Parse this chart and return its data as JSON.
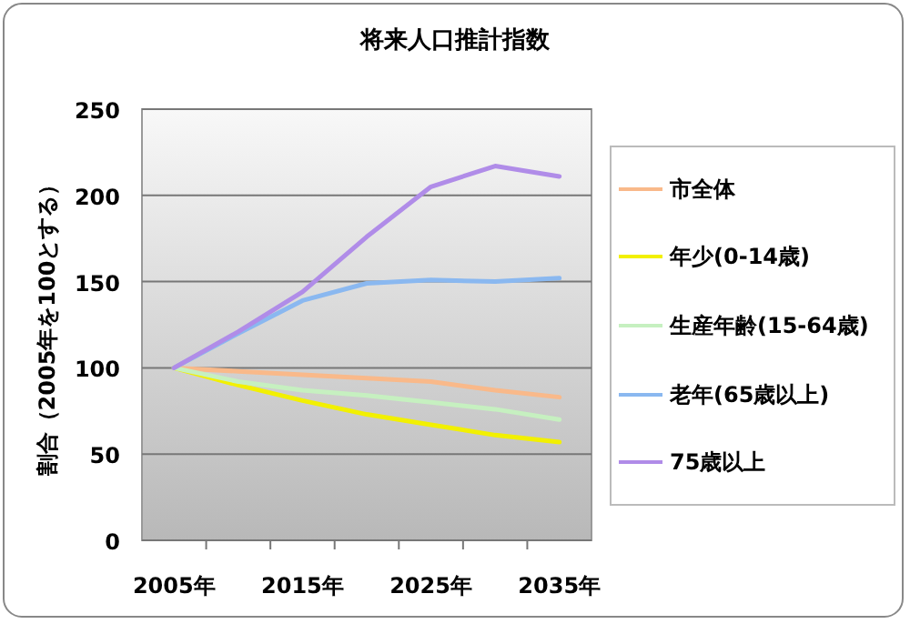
{
  "chart_data": {
    "type": "line",
    "title": "将来人口推計指数",
    "ylabel": "割合（2005年を100とする）",
    "categories": [
      "2005年",
      null,
      "2015年",
      null,
      "2025年",
      null,
      "2035年"
    ],
    "series": [
      {
        "name": "市全体",
        "color": "#f9b98a",
        "values": [
          100,
          98,
          96,
          94,
          92,
          87,
          83
        ]
      },
      {
        "name": "年少(0-14歳)",
        "color": "#f2f000",
        "values": [
          100,
          90,
          81,
          73,
          67,
          61,
          57
        ]
      },
      {
        "name": "生産年齢(15-64歳)",
        "color": "#c6f0c0",
        "values": [
          100,
          92,
          87,
          84,
          80,
          76,
          70
        ]
      },
      {
        "name": "老年(65歳以上)",
        "color": "#8ab8f0",
        "values": [
          100,
          120,
          139,
          149,
          151,
          150,
          152
        ]
      },
      {
        "name": "75歳以上",
        "color": "#b08ce8",
        "values": [
          100,
          121,
          144,
          176,
          205,
          217,
          211
        ]
      }
    ],
    "ylim": [
      0,
      250
    ],
    "yticks": [
      0,
      50,
      100,
      150,
      200,
      250
    ],
    "grid": "y",
    "legend": "right"
  }
}
